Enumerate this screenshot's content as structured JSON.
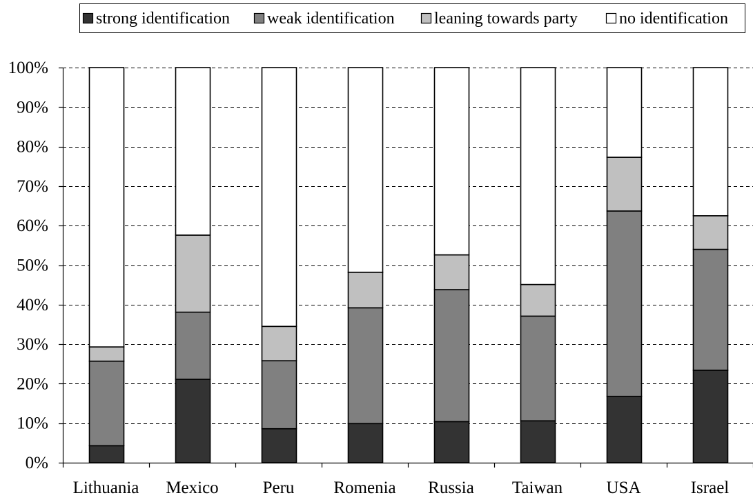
{
  "chart_data": {
    "type": "bar",
    "stacked": true,
    "normalized": true,
    "title": "",
    "xlabel": "",
    "ylabel": "",
    "ylim": [
      0,
      100
    ],
    "yticks": [
      "0%",
      "10%",
      "20%",
      "30%",
      "40%",
      "50%",
      "60%",
      "70%",
      "80%",
      "90%",
      "100%"
    ],
    "grid": true,
    "legend_position": "top",
    "categories": [
      "Lithuania",
      "Mexico",
      "Peru",
      "Romenia",
      "Russia",
      "Taiwan",
      "USA",
      "Israel"
    ],
    "series": [
      {
        "name": "strong identification",
        "color": "#333333",
        "values": [
          4.3,
          21.1,
          8.6,
          9.9,
          10.4,
          10.6,
          16.8,
          23.4
        ]
      },
      {
        "name": "weak identification",
        "color": "#808080",
        "values": [
          21.4,
          17.0,
          17.2,
          29.3,
          33.4,
          26.5,
          46.9,
          30.6
        ]
      },
      {
        "name": "leaning towards party",
        "color": "#c0c0c0",
        "values": [
          3.6,
          19.5,
          8.7,
          9.0,
          8.8,
          8.0,
          13.6,
          8.5
        ]
      },
      {
        "name": "no identification",
        "color": "#ffffff",
        "values": [
          70.7,
          42.4,
          65.5,
          51.8,
          47.4,
          54.9,
          22.7,
          37.5
        ]
      }
    ]
  }
}
